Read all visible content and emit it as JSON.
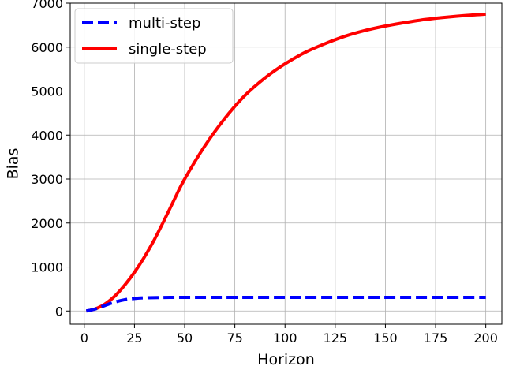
{
  "chart_data": {
    "type": "line",
    "xlabel": "Horizon",
    "ylabel": "Bias",
    "xlim": [
      -7,
      208
    ],
    "ylim": [
      -300,
      7000
    ],
    "xticks": [
      0,
      25,
      50,
      75,
      100,
      125,
      150,
      175,
      200
    ],
    "yticks": [
      0,
      1000,
      2000,
      3000,
      4000,
      5000,
      6000,
      7000
    ],
    "grid": true,
    "legend_position": "top-left",
    "series": [
      {
        "name": "multi-step",
        "color": "#0000ff",
        "style": "dashed",
        "x": [
          1,
          5,
          10,
          15,
          20,
          25,
          30,
          40,
          50,
          75,
          100,
          125,
          150,
          175,
          200
        ],
        "y": [
          0,
          40,
          120,
          200,
          255,
          285,
          300,
          308,
          310,
          310,
          310,
          310,
          310,
          310,
          310
        ]
      },
      {
        "name": "single-step",
        "color": "#ff0000",
        "style": "solid",
        "x": [
          1,
          5,
          10,
          15,
          20,
          25,
          30,
          35,
          40,
          45,
          50,
          60,
          70,
          80,
          90,
          100,
          110,
          120,
          130,
          140,
          150,
          160,
          170,
          180,
          190,
          200
        ],
        "y": [
          0,
          40,
          150,
          330,
          580,
          880,
          1230,
          1630,
          2080,
          2550,
          3000,
          3750,
          4380,
          4900,
          5300,
          5620,
          5880,
          6080,
          6250,
          6380,
          6480,
          6560,
          6630,
          6680,
          6720,
          6750
        ]
      }
    ]
  }
}
